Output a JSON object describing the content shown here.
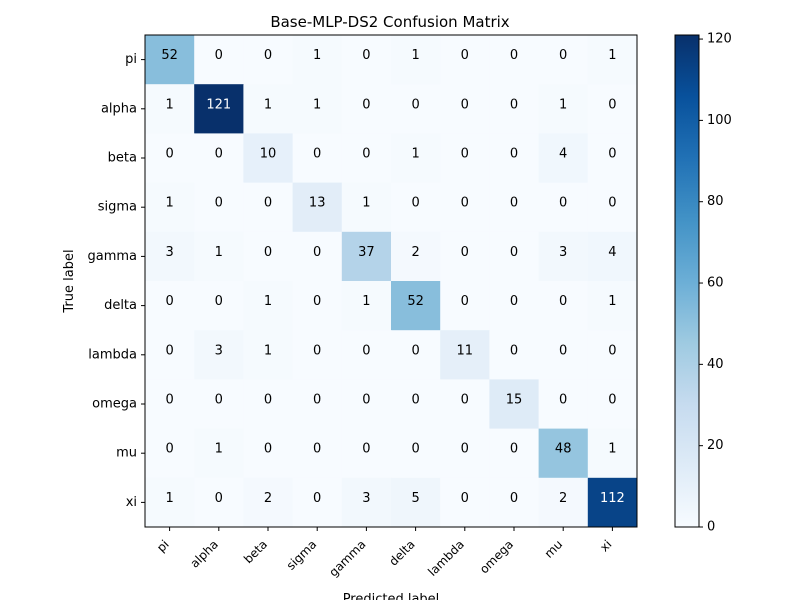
{
  "chart_data": {
    "type": "heatmap",
    "title": "Base-MLP-DS2 Confusion Matrix",
    "xlabel": "Predicted label",
    "ylabel": "True label",
    "row_labels": [
      "pi",
      "alpha",
      "beta",
      "sigma",
      "gamma",
      "delta",
      "lambda",
      "omega",
      "mu",
      "xi"
    ],
    "col_labels": [
      "pi",
      "alpha",
      "beta",
      "sigma",
      "gamma",
      "delta",
      "lambda",
      "omega",
      "mu",
      "xi"
    ],
    "matrix": [
      [
        52,
        0,
        0,
        1,
        0,
        1,
        0,
        0,
        0,
        1
      ],
      [
        1,
        121,
        1,
        1,
        0,
        0,
        0,
        0,
        1,
        0
      ],
      [
        0,
        0,
        10,
        0,
        0,
        1,
        0,
        0,
        4,
        0
      ],
      [
        1,
        0,
        0,
        13,
        1,
        0,
        0,
        0,
        0,
        0
      ],
      [
        3,
        1,
        0,
        0,
        37,
        2,
        0,
        0,
        3,
        4
      ],
      [
        0,
        0,
        1,
        0,
        1,
        52,
        0,
        0,
        0,
        1
      ],
      [
        0,
        3,
        1,
        0,
        0,
        0,
        11,
        0,
        0,
        0
      ],
      [
        0,
        0,
        0,
        0,
        0,
        0,
        0,
        15,
        0,
        0
      ],
      [
        0,
        1,
        0,
        0,
        0,
        0,
        0,
        0,
        48,
        1
      ],
      [
        1,
        0,
        2,
        0,
        3,
        5,
        0,
        0,
        2,
        112
      ]
    ],
    "colormap": "Blues",
    "colorbar": {
      "range": [
        0,
        121
      ],
      "ticks": [
        0,
        20,
        40,
        60,
        80,
        100,
        120
      ]
    }
  }
}
